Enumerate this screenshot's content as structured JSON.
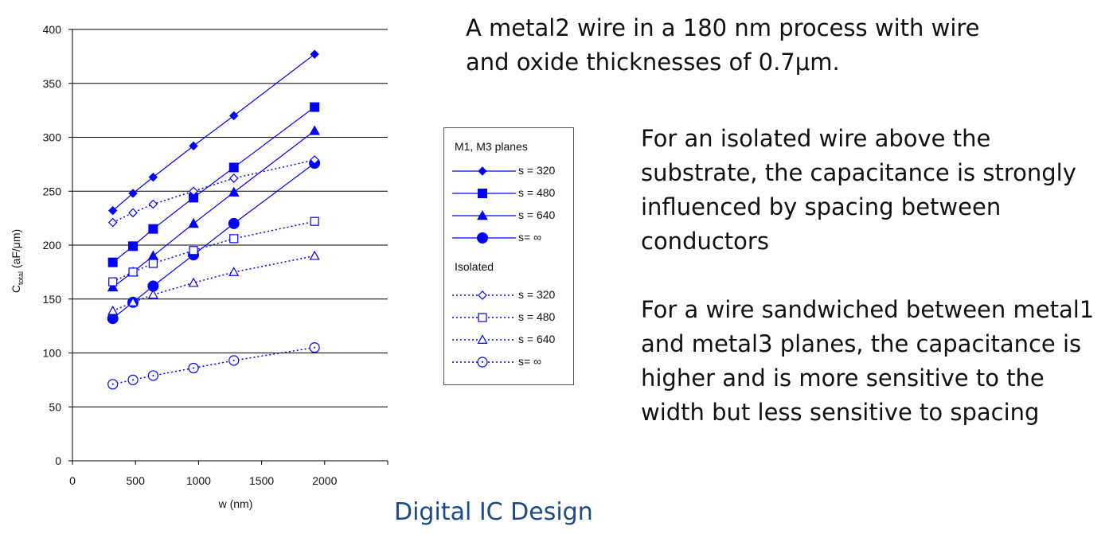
{
  "slide": {
    "title": "A metal2 wire in a 180 nm process with wire and oxide thicknesses of 0.7μm.",
    "title_lines": [
      "A metal2 wire in a 180 nm process with wire",
      "and oxide thicknesses of 0.7μm."
    ],
    "para1_lines": [
      "For an isolated wire above the",
      "substrate, the capacitance is strongly",
      "influenced by spacing between",
      "conductors"
    ],
    "para2_lines": [
      "For a wire sandwiched between metal1",
      "and metal3 planes, the capacitance is",
      "higher and is more sensitive to the",
      "width but less sensitive to spacing"
    ],
    "footer": "Digital IC Design"
  },
  "chart_data": {
    "type": "line",
    "xlabel": "w (nm)",
    "ylabel": "C",
    "ylabel_sub": "total",
    "ylabel_unit": "(aF/μm)",
    "xlim": [
      0,
      2500
    ],
    "ylim": [
      0,
      400
    ],
    "xticks": [
      "0",
      "500",
      "1000",
      "1500",
      "2000"
    ],
    "xtick_values": [
      0,
      500,
      1000,
      1500,
      2000
    ],
    "yticks": [
      "0",
      "50",
      "100",
      "150",
      "200",
      "250",
      "300",
      "350",
      "400"
    ],
    "ytick_values": [
      0,
      50,
      100,
      150,
      200,
      250,
      300,
      350,
      400
    ],
    "grid": "horizontal",
    "color": "#0000ff",
    "x": [
      320,
      480,
      640,
      960,
      1280,
      1920
    ],
    "legend": {
      "placement": "right of plot",
      "group1": "M1, M3 planes",
      "group2": "Isolated"
    },
    "series": [
      {
        "name": "s = 320",
        "group": "M1, M3 planes",
        "marker": "diamond",
        "filled": true,
        "dashed": false,
        "values": [
          232,
          248,
          263,
          292,
          320,
          377
        ]
      },
      {
        "name": "s = 480",
        "group": "M1, M3 planes",
        "marker": "square",
        "filled": true,
        "dashed": false,
        "values": [
          184,
          199,
          215,
          244,
          272,
          328
        ]
      },
      {
        "name": "s = 640",
        "group": "M1, M3 planes",
        "marker": "triangle",
        "filled": true,
        "dashed": false,
        "values": [
          161,
          175,
          190,
          220,
          249,
          306
        ]
      },
      {
        "name": "s= ∞",
        "group": "M1, M3 planes",
        "marker": "circle",
        "filled": true,
        "dashed": false,
        "values": [
          132,
          147,
          162,
          191,
          220,
          276
        ]
      },
      {
        "name": "s = 320",
        "group": "Isolated",
        "marker": "diamond",
        "filled": false,
        "dashed": true,
        "values": [
          221,
          230,
          238,
          250,
          262,
          279
        ]
      },
      {
        "name": "s = 480",
        "group": "Isolated",
        "marker": "square",
        "filled": false,
        "dashed": true,
        "values": [
          166,
          175,
          183,
          195,
          206,
          222
        ]
      },
      {
        "name": "s = 640",
        "group": "Isolated",
        "marker": "triangle",
        "filled": false,
        "dashed": true,
        "values": [
          139,
          147,
          154,
          165,
          175,
          190
        ]
      },
      {
        "name": "s= ∞",
        "group": "Isolated",
        "marker": "circle",
        "filled": false,
        "dashed": true,
        "values": [
          71,
          75,
          79,
          86,
          93,
          105
        ]
      }
    ]
  }
}
